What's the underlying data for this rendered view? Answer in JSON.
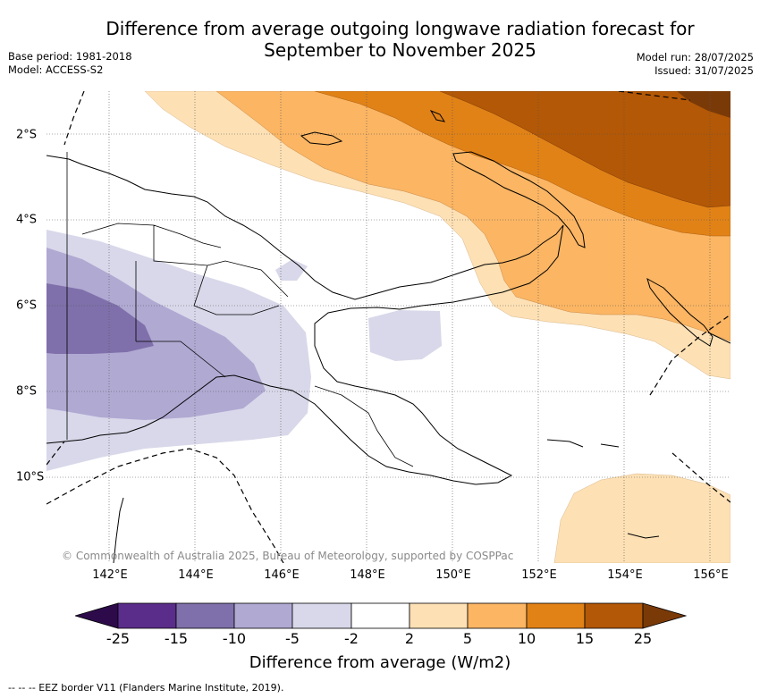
{
  "header": {
    "title_line1": "Difference from average outgoing longwave radiation forecast for",
    "title_line2": "September to November 2025",
    "base_period": "Base period: 1981-2018",
    "model": "Model: ACCESS-S2",
    "model_run": "Model run: 28/07/2025",
    "issued": "Issued: 31/07/2025"
  },
  "map": {
    "extent_lon": [
      140.5,
      156.5
    ],
    "extent_lat": [
      -12.0,
      -1.0
    ],
    "longitude_labels": [
      "142°E",
      "144°E",
      "146°E",
      "148°E",
      "150°E",
      "152°E",
      "154°E",
      "156°E"
    ],
    "latitude_labels": [
      "2°S",
      "4°S",
      "6°S",
      "8°S",
      "10°S"
    ],
    "gridlines": true,
    "credit": "© Commonwealth of Australia 2025, Bureau of Meteorology, supported by COSPPac"
  },
  "legend": {
    "title": "Difference from average (W/m2)",
    "tick_labels": [
      "-25",
      "-15",
      "-10",
      "-5",
      "-2",
      "2",
      "5",
      "10",
      "15",
      "25"
    ],
    "colors": {
      "below_-25": "#2d0b4a",
      "-25_-15": "#5a2d8a",
      "-15_-10": "#7f70ab",
      "-10_-5": "#b0a9d2",
      "-5_-2": "#d8d8ea",
      "-2_2": "#ffffff",
      "2_5": "#fde0b4",
      "5_10": "#fbb563",
      "10_15": "#e18217",
      "15_25": "#b35806",
      "above_25": "#7a3a08"
    }
  },
  "footnote": "--  --  -- EEZ border V11 (Flanders Marine Institute, 2019)."
}
